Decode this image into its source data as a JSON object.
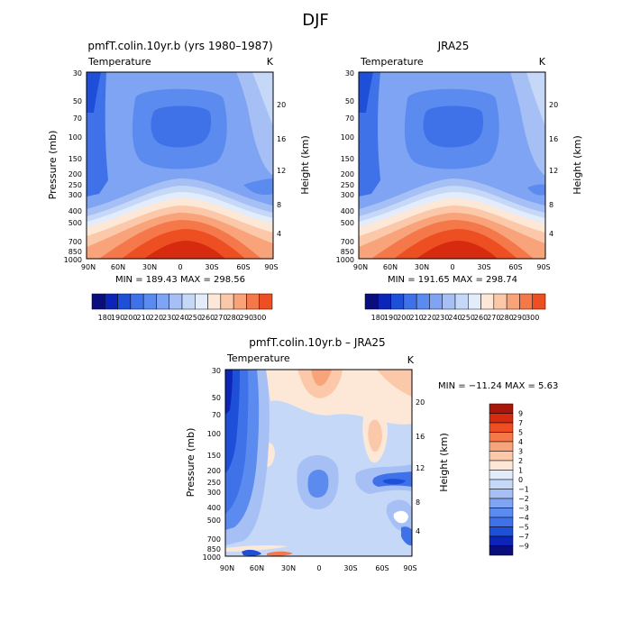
{
  "figure": {
    "title": "DJF"
  },
  "colors": {
    "temp_scale": [
      "#0b0d7c",
      "#0d24b8",
      "#1d4fd8",
      "#3f72e8",
      "#5b8bef",
      "#7ea4f3",
      "#a6c0f6",
      "#c6d8f8",
      "#e3ecfb",
      "#fde8d8",
      "#fbc9aa",
      "#f8a37a",
      "#f4784a",
      "#ed4f22",
      "#d72b0f",
      "#a8160a",
      "#740d0d"
    ],
    "diff_scale": [
      "#0b0d7c",
      "#0d24b8",
      "#1d4fd8",
      "#3f72e8",
      "#5b8bef",
      "#7ea4f3",
      "#a6c0f6",
      "#c6d8f8",
      "#e3ecfb",
      "#fde8d8",
      "#fbc9aa",
      "#f8a37a",
      "#f4784a",
      "#ed4f22",
      "#d72b0f",
      "#a8160a",
      "#740d0d"
    ]
  },
  "chart_data": [
    {
      "type": "heatmap",
      "title": "pmfT.colin.10yr.b (yrs 1980–1987)",
      "subtitle_left": "Temperature",
      "subtitle_right": "K",
      "xlabel": "",
      "ylabel": "Pressure (mb)",
      "ylabel_right": "Height (km)",
      "x_ticks": [
        "90N",
        "60N",
        "30N",
        "0",
        "30S",
        "60S",
        "90S"
      ],
      "y_ticks": [
        "30",
        "50",
        "70",
        "100",
        "150",
        "200",
        "250",
        "300",
        "400",
        "500",
        "700",
        "850",
        "1000"
      ],
      "y_ticks_right": [
        "20",
        "16",
        "12",
        "8",
        "4"
      ],
      "min_max_text": "MIN = 189.43   MAX = 298.56",
      "colorbar_labels": [
        "180",
        "190",
        "200",
        "210",
        "220",
        "230",
        "240",
        "250",
        "260",
        "270",
        "280",
        "290",
        "300"
      ],
      "values_range": [
        180,
        305
      ]
    },
    {
      "type": "heatmap",
      "title": "JRA25",
      "subtitle_left": "Temperature",
      "subtitle_right": "K",
      "xlabel": "",
      "ylabel": "",
      "ylabel_right": "Height (km)",
      "x_ticks": [
        "90N",
        "60N",
        "30N",
        "0",
        "30S",
        "60S",
        "90S"
      ],
      "y_ticks": [
        "30",
        "50",
        "70",
        "100",
        "150",
        "200",
        "250",
        "300",
        "400",
        "500",
        "700",
        "850",
        "1000"
      ],
      "y_ticks_right": [
        "20",
        "16",
        "12",
        "8",
        "4"
      ],
      "min_max_text": "MIN = 191.65   MAX = 298.74",
      "colorbar_labels": [
        "180",
        "190",
        "200",
        "210",
        "220",
        "230",
        "240",
        "250",
        "260",
        "270",
        "280",
        "290",
        "300"
      ],
      "values_range": [
        180,
        305
      ]
    },
    {
      "type": "heatmap",
      "title": "pmfT.colin.10yr.b – JRA25",
      "subtitle_left": "Temperature",
      "subtitle_right": "K",
      "xlabel": "",
      "ylabel": "Pressure (mb)",
      "ylabel_right": "Height (km)",
      "x_ticks": [
        "90N",
        "60N",
        "30N",
        "0",
        "30S",
        "60S",
        "90S"
      ],
      "y_ticks": [
        "30",
        "50",
        "70",
        "100",
        "150",
        "200",
        "250",
        "300",
        "400",
        "500",
        "700",
        "850",
        "1000"
      ],
      "y_ticks_right": [
        "20",
        "16",
        "12",
        "8",
        "4"
      ],
      "min_max_text": "MIN = −11.24   MAX =    5.63",
      "colorbar_labels": [
        "9",
        "7",
        "5",
        "4",
        "3",
        "2",
        "1",
        "0",
        "−1",
        "−2",
        "−3",
        "−4",
        "−5",
        "−7",
        "−9"
      ],
      "values_range": [
        -10,
        10
      ]
    }
  ]
}
